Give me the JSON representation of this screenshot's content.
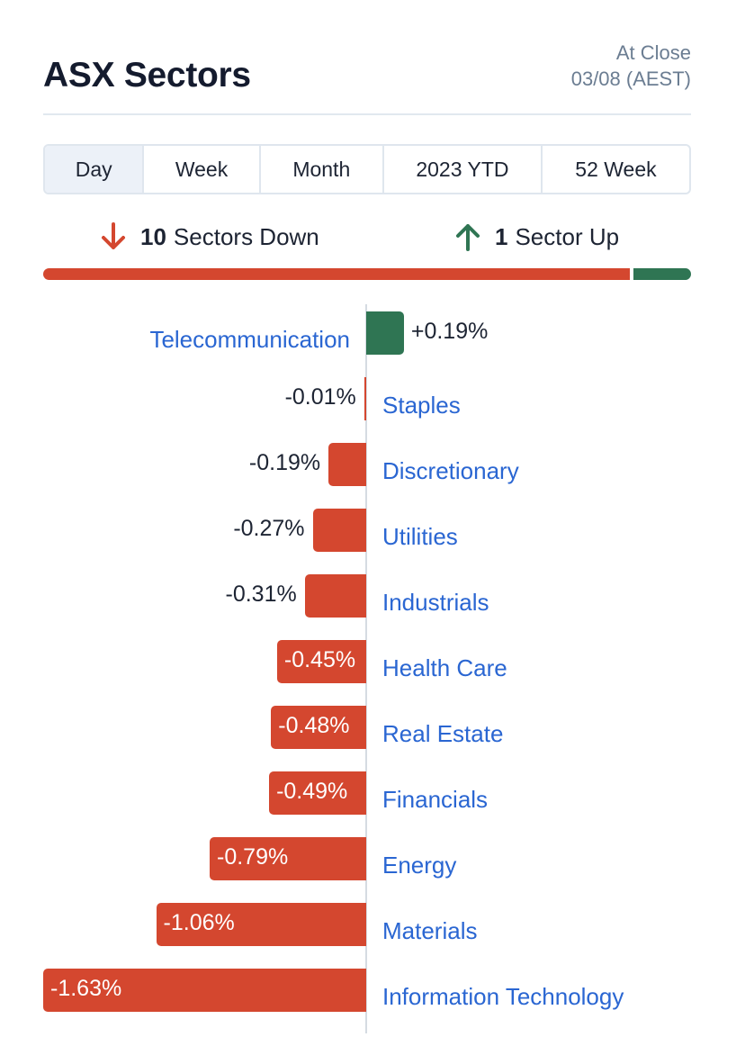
{
  "header": {
    "title": "ASX Sectors",
    "status": "At Close",
    "date": "03/08 (AEST)"
  },
  "tabs": [
    {
      "label": "Day",
      "active": true
    },
    {
      "label": "Week",
      "active": false
    },
    {
      "label": "Month",
      "active": false
    },
    {
      "label": "2023 YTD",
      "active": false
    },
    {
      "label": "52 Week",
      "active": false
    }
  ],
  "summary": {
    "down_count": "10",
    "down_text": "Sectors Down",
    "up_count": "1",
    "up_text": "Sector Up",
    "down_icon": "arrow-down-icon",
    "up_icon": "arrow-up-icon"
  },
  "colors": {
    "down": "#d4472f",
    "up": "#2f7553",
    "link": "#2a66d2",
    "text": "#1d2433"
  },
  "chart_data": {
    "type": "bar",
    "orientation": "horizontal",
    "categories": [
      "Telecommunication",
      "Staples",
      "Discretionary",
      "Utilities",
      "Industrials",
      "Health Care",
      "Real Estate",
      "Financials",
      "Energy",
      "Materials",
      "Information Technology"
    ],
    "values": [
      0.19,
      -0.01,
      -0.19,
      -0.27,
      -0.31,
      -0.45,
      -0.48,
      -0.49,
      -0.79,
      -1.06,
      -1.63
    ],
    "value_labels": [
      "+0.19%",
      "-0.01%",
      "-0.19%",
      "-0.27%",
      "-0.31%",
      "-0.45%",
      "-0.48%",
      "-0.49%",
      "-0.79%",
      "-1.06%",
      "-1.63%"
    ],
    "unit": "%"
  }
}
